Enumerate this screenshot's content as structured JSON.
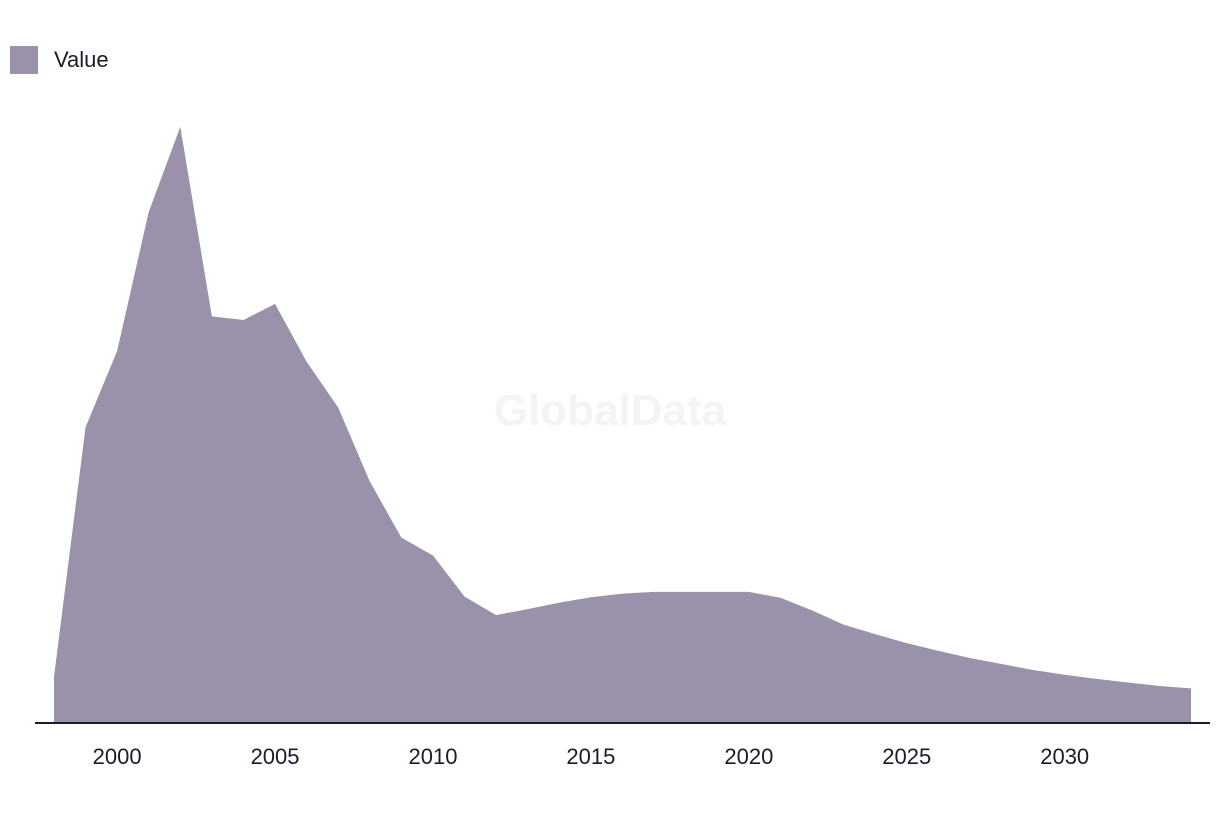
{
  "legend": {
    "label": "Value"
  },
  "watermark": "GlobalData",
  "colors": {
    "area_fill": "#9a91aa",
    "axis": "#1f1a2b",
    "text": "#1f1a2b",
    "watermark": "#f4f3f5"
  },
  "chart_data": {
    "type": "area",
    "title": "",
    "xlabel": "",
    "ylabel": "",
    "x": [
      1998,
      1999,
      2000,
      2001,
      2002,
      2003,
      2004,
      2005,
      2006,
      2007,
      2008,
      2009,
      2010,
      2011,
      2012,
      2013,
      2014,
      2015,
      2016,
      2017,
      2018,
      2019,
      2020,
      2021,
      2022,
      2023,
      2024,
      2025,
      2026,
      2027,
      2028,
      2029,
      2030,
      2031,
      2032,
      2033,
      2034
    ],
    "series": [
      {
        "name": "Value",
        "values": [
          7.7,
          49.6,
          62.4,
          85.7,
          100,
          68.2,
          67.6,
          70.3,
          60.6,
          52.9,
          40.5,
          31.1,
          28.1,
          21.2,
          18.1,
          19.1,
          20.2,
          21.1,
          21.7,
          22.0,
          22.0,
          22.0,
          22.0,
          21.0,
          18.9,
          16.5,
          14.9,
          13.4,
          12.1,
          10.9,
          9.9,
          8.9,
          8.1,
          7.4,
          6.8,
          6.2,
          5.8
        ]
      }
    ],
    "xlim": [
      1997.4,
      2034.6
    ],
    "ylim": [
      0,
      105
    ],
    "xticks": [
      "2000",
      "2005",
      "2010",
      "2015",
      "2020",
      "2025",
      "2030"
    ],
    "grid": false,
    "legend_position": "top-left"
  }
}
